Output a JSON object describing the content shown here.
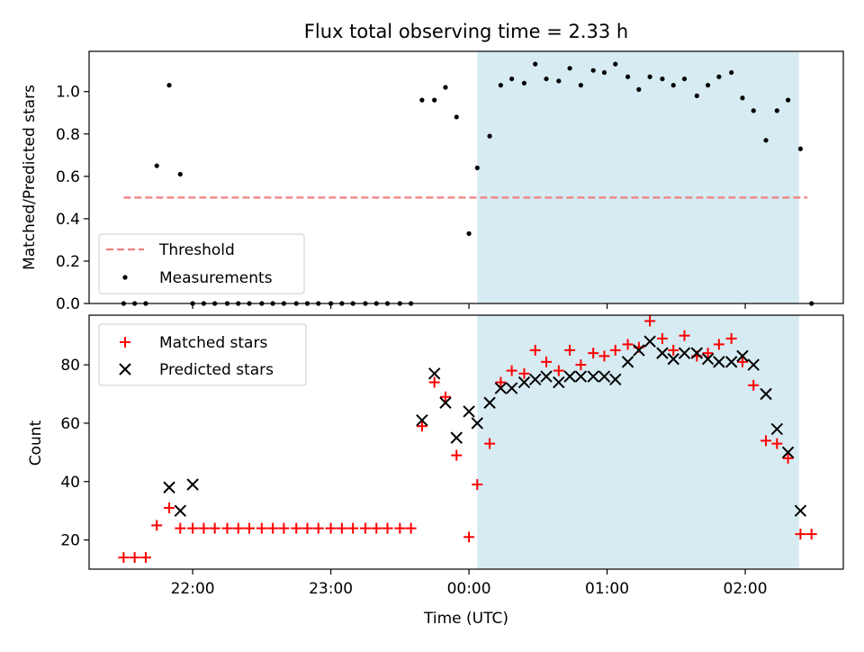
{
  "chart_data": [
    {
      "type": "scatter",
      "title": "Flux total observing time = 2.33 h",
      "xlabel": "",
      "ylabel": "Matched/Predicted stars",
      "ylim": [
        0,
        1.19
      ],
      "yticks": [
        0.0,
        0.2,
        0.4,
        0.6,
        0.8,
        1.0
      ],
      "ytick_labels": [
        "0.0",
        "0.2",
        "0.4",
        "0.6",
        "0.8",
        "1.0"
      ],
      "xlim_hours": [
        -2.75,
        2.71
      ],
      "xticks_hours": [
        -2,
        -1,
        0,
        1,
        2
      ],
      "xtick_labels": [
        "",
        "",
        "",
        "",
        ""
      ],
      "highlight_span_hours": [
        0.06,
        2.39
      ],
      "highlight_color": "#add8e6",
      "legend_position": "lower-left",
      "threshold": {
        "name": "Threshold",
        "value": 0.5,
        "x_range_hours": [
          -2.5,
          2.45
        ],
        "color": "#f08080"
      },
      "series": [
        {
          "name": "Measurements",
          "color": "#000000",
          "marker": "dot",
          "x": [
            -2.5,
            -2.42,
            -2.34,
            -2.26,
            -2.17,
            -2.09,
            -2.0,
            -1.92,
            -1.84,
            -1.75,
            -1.67,
            -1.59,
            -1.5,
            -1.42,
            -1.34,
            -1.25,
            -1.17,
            -1.09,
            -1.0,
            -0.92,
            -0.84,
            -0.75,
            -0.67,
            -0.59,
            -0.5,
            -0.42,
            -0.34,
            -0.25,
            -0.17,
            -0.09,
            0.0,
            0.06,
            0.15,
            0.23,
            0.31,
            0.4,
            0.48,
            0.56,
            0.65,
            0.73,
            0.81,
            0.9,
            0.98,
            1.06,
            1.15,
            1.23,
            1.31,
            1.4,
            1.48,
            1.56,
            1.65,
            1.73,
            1.81,
            1.9,
            1.98,
            2.06,
            2.15,
            2.23,
            2.31,
            2.4,
            2.48
          ],
          "y": [
            0.0,
            0.0,
            0.0,
            0.65,
            1.03,
            0.61,
            0.0,
            0.0,
            0.0,
            0.0,
            0.0,
            0.0,
            0.0,
            0.0,
            0.0,
            0.0,
            0.0,
            0.0,
            0.0,
            0.0,
            0.0,
            0.0,
            0.0,
            0.0,
            0.0,
            0.0,
            0.96,
            0.96,
            1.02,
            0.88,
            0.33,
            0.64,
            0.79,
            1.03,
            1.06,
            1.04,
            1.13,
            1.06,
            1.05,
            1.11,
            1.03,
            1.1,
            1.09,
            1.13,
            1.07,
            1.01,
            1.07,
            1.06,
            1.03,
            1.06,
            0.98,
            1.03,
            1.07,
            1.09,
            0.97,
            0.91,
            0.77,
            0.91,
            0.96,
            0.73,
            0.0
          ]
        }
      ]
    },
    {
      "type": "scatter",
      "title": "",
      "xlabel": "Time (UTC)",
      "ylabel": "Count",
      "ylim": [
        10,
        97
      ],
      "yticks": [
        20,
        40,
        60,
        80
      ],
      "ytick_labels": [
        "20",
        "40",
        "60",
        "80"
      ],
      "xlim_hours": [
        -2.75,
        2.71
      ],
      "xticks_hours": [
        -2,
        -1,
        0,
        1,
        2
      ],
      "xtick_labels": [
        "22:00",
        "23:00",
        "00:00",
        "01:00",
        "02:00"
      ],
      "highlight_span_hours": [
        0.06,
        2.39
      ],
      "highlight_color": "#add8e6",
      "legend_position": "upper-left",
      "series": [
        {
          "name": "Matched stars",
          "color": "#ff0000",
          "marker": "plus",
          "x": [
            -2.5,
            -2.42,
            -2.34,
            -2.26,
            -2.17,
            -2.09,
            -2.0,
            -1.92,
            -1.84,
            -1.75,
            -1.67,
            -1.59,
            -1.5,
            -1.42,
            -1.34,
            -1.25,
            -1.17,
            -1.09,
            -1.0,
            -0.92,
            -0.84,
            -0.75,
            -0.67,
            -0.59,
            -0.5,
            -0.42,
            -0.34,
            -0.25,
            -0.17,
            -0.09,
            0.0,
            0.06,
            0.15,
            0.23,
            0.31,
            0.4,
            0.48,
            0.56,
            0.65,
            0.73,
            0.81,
            0.9,
            0.98,
            1.06,
            1.15,
            1.23,
            1.31,
            1.4,
            1.48,
            1.56,
            1.65,
            1.73,
            1.81,
            1.9,
            1.98,
            2.06,
            2.15,
            2.23,
            2.31,
            2.4,
            2.48
          ],
          "y": [
            14,
            14,
            14,
            25,
            31,
            24,
            24,
            24,
            24,
            24,
            24,
            24,
            24,
            24,
            24,
            24,
            24,
            24,
            24,
            24,
            24,
            24,
            24,
            24,
            24,
            24,
            59,
            74,
            69,
            49,
            21,
            39,
            53,
            74,
            78,
            77,
            85,
            81,
            78,
            85,
            80,
            84,
            83,
            85,
            87,
            86,
            95,
            89,
            85,
            90,
            83,
            84,
            87,
            89,
            81,
            73,
            54,
            53,
            48,
            22,
            22
          ]
        },
        {
          "name": "Predicted stars",
          "color": "#000000",
          "marker": "x",
          "x": [
            -2.17,
            -2.09,
            -2.0,
            -0.34,
            -0.25,
            -0.17,
            -0.09,
            0.0,
            0.06,
            0.15,
            0.23,
            0.31,
            0.4,
            0.48,
            0.56,
            0.65,
            0.73,
            0.81,
            0.9,
            0.98,
            1.06,
            1.15,
            1.23,
            1.31,
            1.4,
            1.48,
            1.56,
            1.65,
            1.73,
            1.81,
            1.9,
            1.98,
            2.06,
            2.15,
            2.23,
            2.31,
            2.4
          ],
          "y": [
            38,
            30,
            39,
            61,
            77,
            67,
            55,
            64,
            60,
            67,
            72,
            72,
            74,
            75,
            76,
            74,
            76,
            76,
            76,
            76,
            75,
            81,
            85,
            88,
            84,
            82,
            84,
            84,
            82,
            81,
            81,
            83,
            80,
            70,
            58,
            50,
            30
          ]
        }
      ]
    }
  ]
}
